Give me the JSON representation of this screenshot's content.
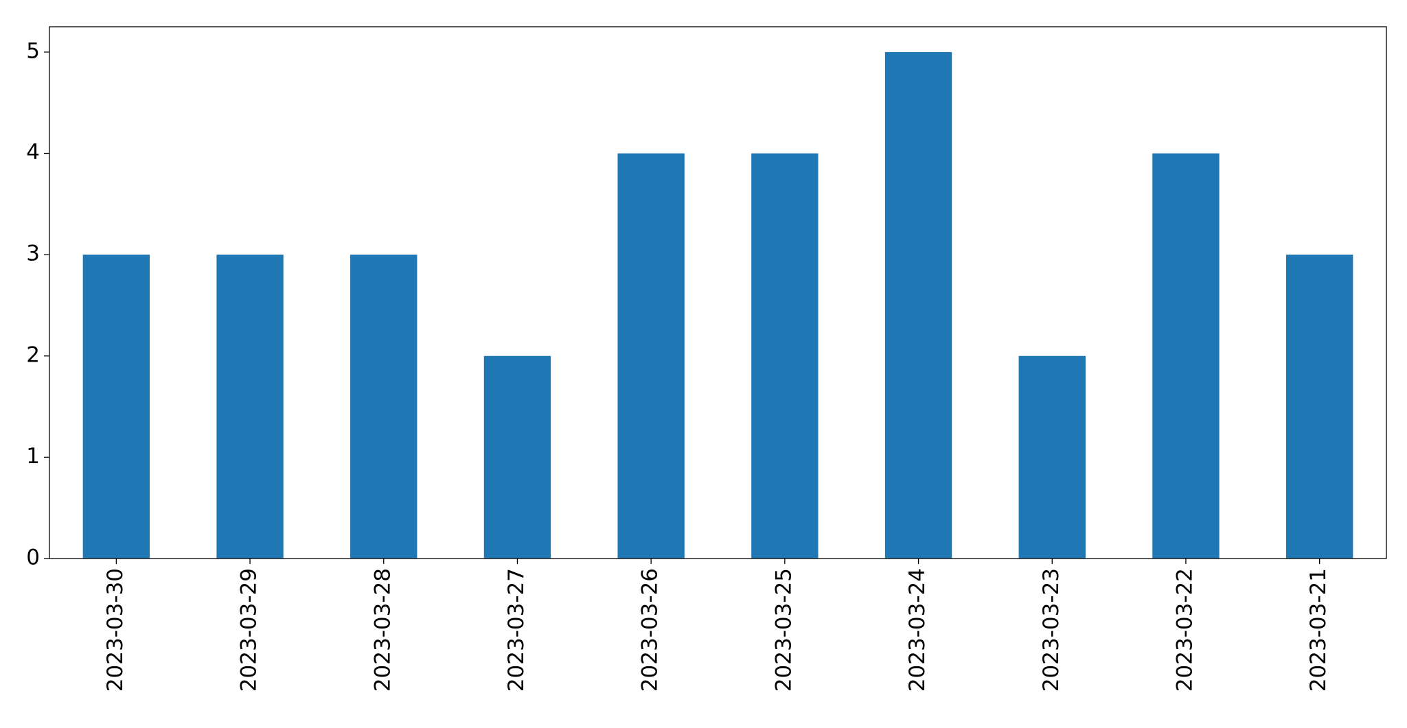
{
  "chart_data": {
    "type": "bar",
    "categories": [
      "2023-03-30",
      "2023-03-29",
      "2023-03-28",
      "2023-03-27",
      "2023-03-26",
      "2023-03-25",
      "2023-03-24",
      "2023-03-23",
      "2023-03-22",
      "2023-03-21"
    ],
    "values": [
      3,
      3,
      3,
      2,
      4,
      4,
      5,
      2,
      4,
      3
    ],
    "color": "#1f77b4",
    "ylim": [
      0,
      5.25
    ],
    "yticks": [
      0,
      1,
      2,
      3,
      4,
      5
    ],
    "grid": false
  }
}
